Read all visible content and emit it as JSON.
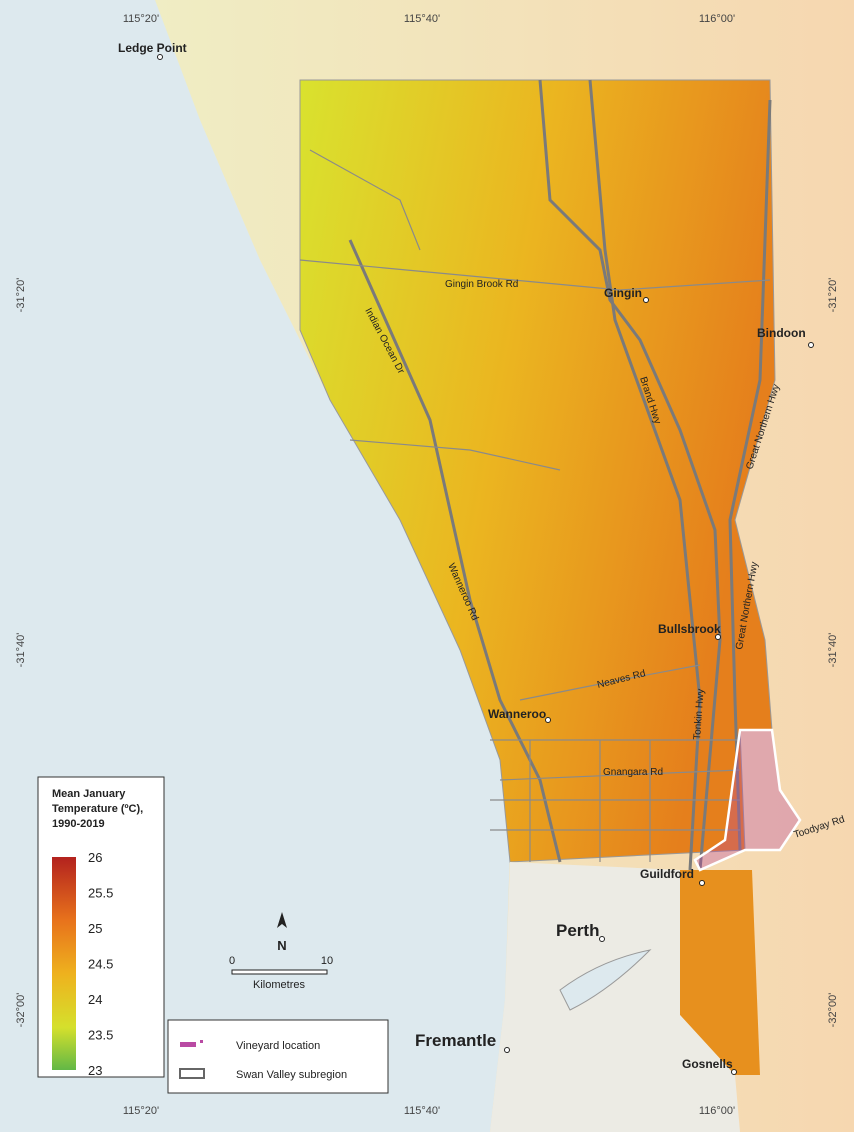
{
  "graticule": {
    "top": [
      "115°20'",
      "115°40'",
      "116°00'"
    ],
    "bottom": [
      "115°20'",
      "115°40'",
      "116°00'"
    ],
    "left": [
      "-31°20'",
      "-31°40'",
      "-32°00'"
    ],
    "right": [
      "-31°20'",
      "-31°40'",
      "-32°00'"
    ]
  },
  "places": [
    "Ledge Point",
    "Gingin",
    "Bindoon",
    "Bullsbrook",
    "Wanneroo",
    "Guildford",
    "Perth",
    "Fremantle",
    "Gosnells"
  ],
  "roads": [
    "Gingin Brook Rd",
    "Indian Ocean Dr",
    "Brand Hwy",
    "Great Northern Hwy",
    "Wanneroo Rd",
    "Neaves Rd",
    "Tonkin Hwy",
    "Great Northern Hwy",
    "Gnangara Rd",
    "Toodyay Rd"
  ],
  "legend": {
    "title": [
      "Mean January",
      "Temperature (ºC),",
      "1990-2019"
    ],
    "ticks": [
      26,
      25.5,
      25,
      24.5,
      24,
      23.5,
      23
    ]
  },
  "scale_bar": {
    "ticks": [
      0,
      10
    ],
    "unit": "Kilometres"
  },
  "north_arrow": "N",
  "key": [
    "Vineyard location",
    "Swan Valley subregion"
  ]
}
